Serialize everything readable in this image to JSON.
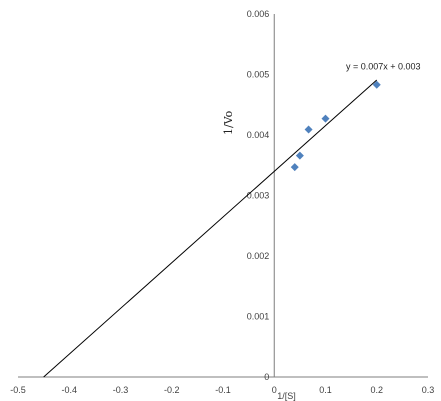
{
  "chart_data": {
    "type": "scatter",
    "title": "",
    "xlabel": "1/[S]",
    "ylabel": "1/Vo",
    "xlim": [
      -0.5,
      0.3
    ],
    "ylim": [
      0,
      0.006
    ],
    "x_ticks": [
      -0.5,
      -0.4,
      -0.3,
      -0.2,
      -0.1,
      0,
      0.1,
      0.2,
      0.3
    ],
    "x_tick_labels": [
      "-0.5",
      "-0.4",
      "-0.3",
      "-0.2",
      "-0.1",
      "0",
      "0.1",
      "0.2",
      "0.3"
    ],
    "y_ticks": [
      0,
      0.001,
      0.002,
      0.003,
      0.004,
      0.005,
      0.006
    ],
    "y_tick_labels": [
      "0",
      "0.001",
      "0.002",
      "0.003",
      "0.004",
      "0.005",
      "0.006"
    ],
    "grid": false,
    "legend": "none",
    "point_color": "#4F81BD",
    "line_color": "#000000",
    "points": [
      {
        "x": 0.04,
        "y": 0.00347
      },
      {
        "x": 0.05,
        "y": 0.00366
      },
      {
        "x": 0.067,
        "y": 0.00409
      },
      {
        "x": 0.1,
        "y": 0.00427
      },
      {
        "x": 0.2,
        "y": 0.00483
      }
    ],
    "trendline": {
      "equation_label": "y = 0.007x + 0.003",
      "x_start": -0.45,
      "y_start": 0,
      "x_end": 0.2,
      "y_end": 0.00491
    }
  }
}
